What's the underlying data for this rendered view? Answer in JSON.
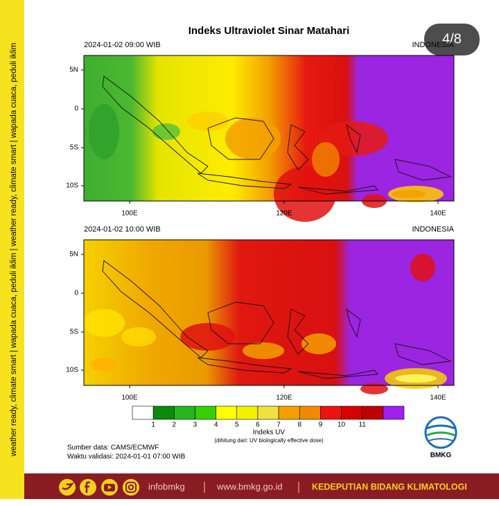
{
  "side_banner": "weather ready, climate smart  |  wapada cuaca, peduli iklim  |  weather ready, climate smart  |  wapada cuaca, peduli iklim",
  "page_counter": "4/8",
  "title": "Indeks Ultraviolet Sinar Matahari",
  "panels": [
    {
      "datetime": "2024-01-02  09:00 WIB",
      "region": "INDONESIA",
      "lat_ticks": [
        "5N",
        "0",
        "5S",
        "10S"
      ],
      "lon_ticks": [
        "100E",
        "120E",
        "140E"
      ]
    },
    {
      "datetime": "2024-01-02  10:00 WIB",
      "region": "INDONESIA",
      "lat_ticks": [
        "5N",
        "0",
        "5S",
        "10S"
      ],
      "lon_ticks": [
        "100E",
        "120E",
        "140E"
      ]
    }
  ],
  "colorbar": {
    "labels": [
      "1",
      "2",
      "3",
      "4",
      "5",
      "6",
      "7",
      "8",
      "9",
      "10",
      "11"
    ],
    "colors": [
      "#ffffff",
      "#0b8a0b",
      "#27b51f",
      "#34d000",
      "#ffff00",
      "#f5f000",
      "#f0e040",
      "#f5a000",
      "#f28a00",
      "#ee1111",
      "#d80000",
      "#c00000",
      "#a020f0"
    ],
    "title": "Indeks UV",
    "note": "(dihitung dari: UV biologically effective dose)"
  },
  "source": "Sumber data: CAMS/ECMWF",
  "validity": "Waktu validasi: 2024-01-01 07:00 WIB",
  "logo": "BMKG",
  "footer": {
    "social": "infobmkg",
    "website": "www.bmkg.go.id",
    "department": "KEDEPUTIAN BIDANG KLIMATOLOGI"
  }
}
